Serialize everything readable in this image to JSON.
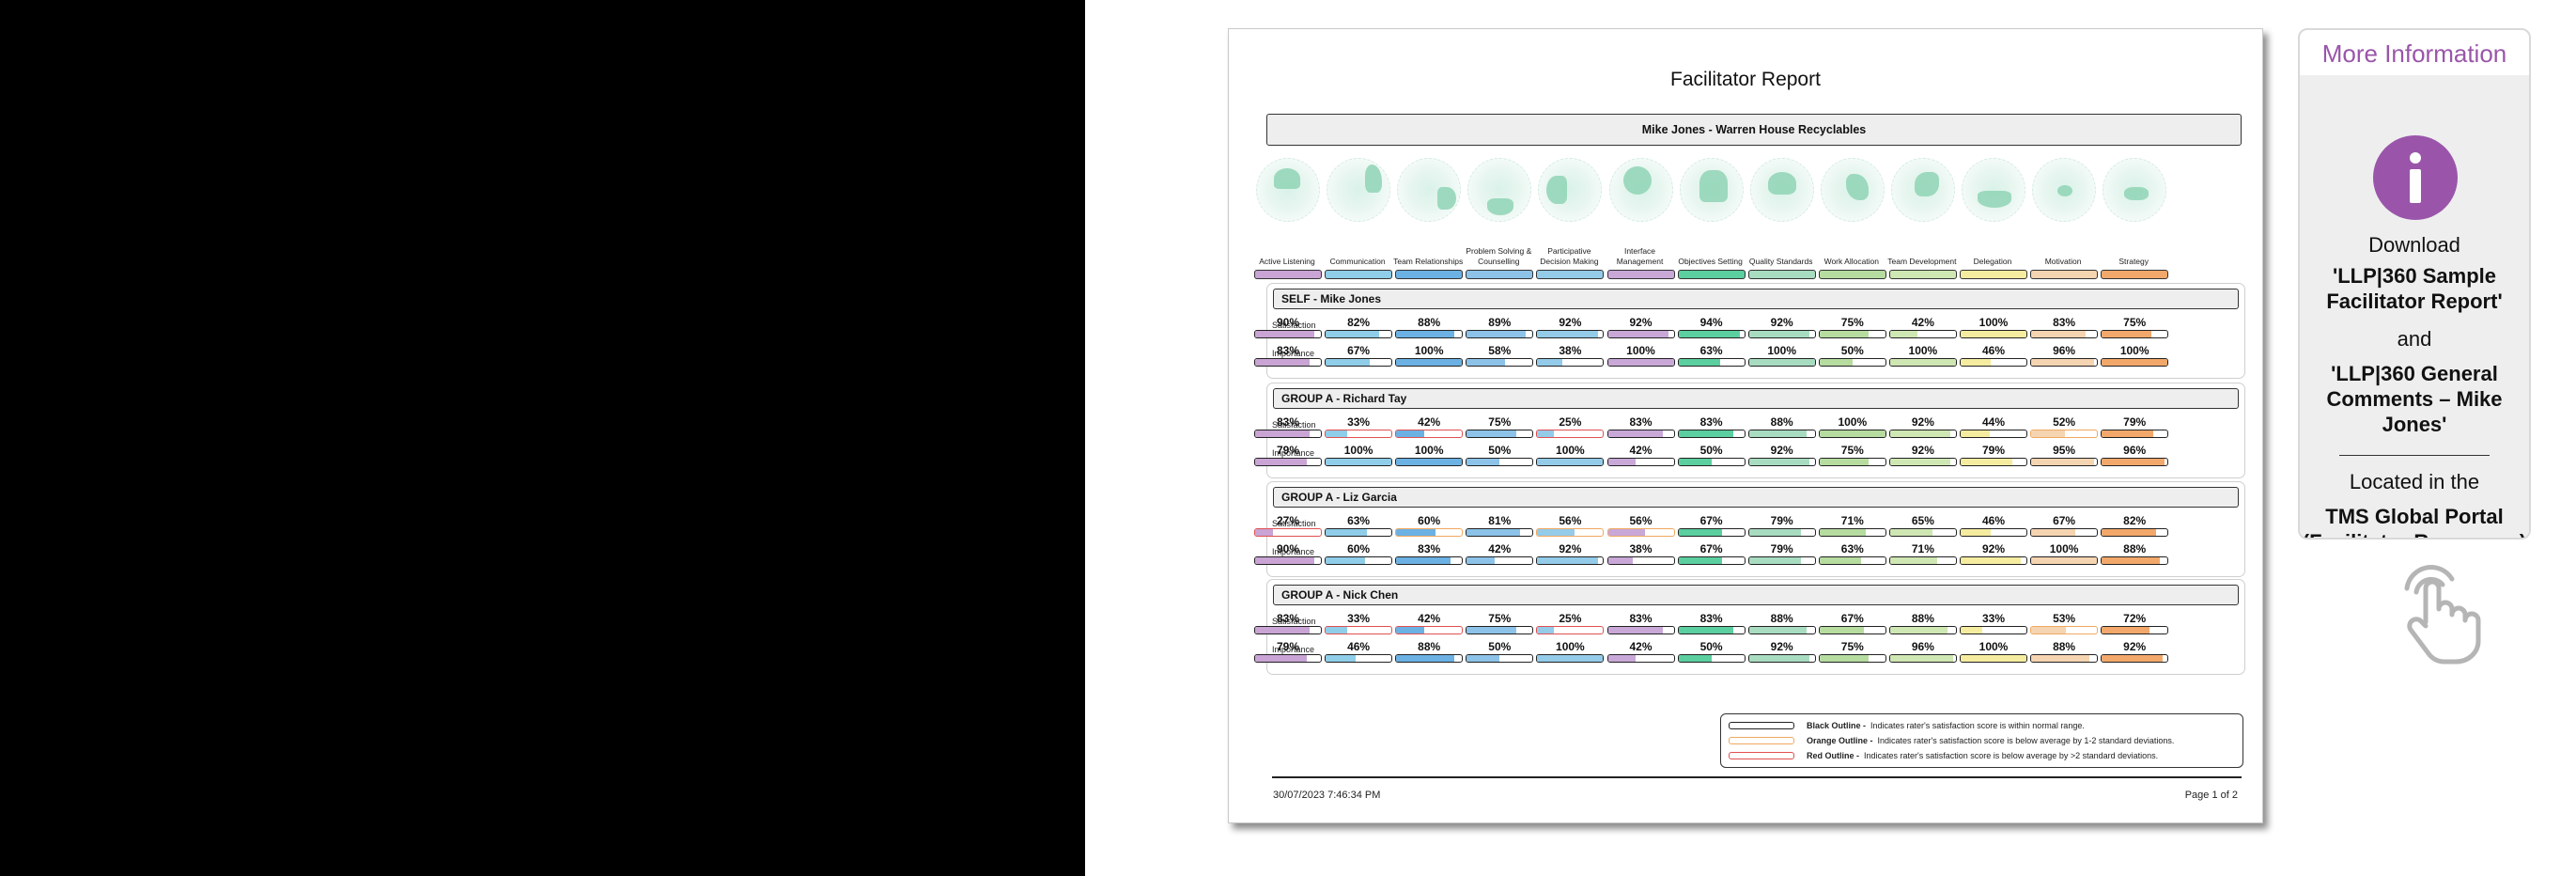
{
  "report": {
    "title": "Facilitator Report",
    "subject": "Mike Jones - Warren House Recyclables",
    "footer_date": "30/07/2023 7:46:34 PM",
    "footer_page": "Page 1 of 2"
  },
  "categories": [
    {
      "name": "Active Listening",
      "color": "#c9a4d4"
    },
    {
      "name": "Communication",
      "color": "#8fcde8"
    },
    {
      "name": "Team Relationships",
      "color": "#6bb1e3"
    },
    {
      "name": "Problem Solving & Counselling",
      "color": "#8dc3e8"
    },
    {
      "name": "Participative Decision Making",
      "color": "#94cbe9"
    },
    {
      "name": "Interface Management",
      "color": "#c9a8d8"
    },
    {
      "name": "Objectives Setting",
      "color": "#5bcf9f"
    },
    {
      "name": "Quality Standards",
      "color": "#a8dcc1"
    },
    {
      "name": "Work Allocation",
      "color": "#b6dca0"
    },
    {
      "name": "Team Development",
      "color": "#cfe7b3"
    },
    {
      "name": "Delegation",
      "color": "#f5eca0"
    },
    {
      "name": "Motivation",
      "color": "#f5d4b1"
    },
    {
      "name": "Strategy",
      "color": "#f2a86a"
    }
  ],
  "sections": [
    {
      "title": "SELF - Mike Jones",
      "satisfaction_label": "Satisfaction",
      "importance_label": "Importance",
      "satisfaction": [
        "90%",
        "82%",
        "88%",
        "89%",
        "92%",
        "92%",
        "94%",
        "92%",
        "75%",
        "42%",
        "100%",
        "83%",
        "75%"
      ],
      "satisfaction_outline": [
        "black",
        "black",
        "black",
        "black",
        "black",
        "black",
        "black",
        "black",
        "black",
        "black",
        "black",
        "black",
        "black"
      ],
      "importance": [
        "83%",
        "67%",
        "100%",
        "58%",
        "38%",
        "100%",
        "63%",
        "100%",
        "50%",
        "100%",
        "46%",
        "96%",
        "100%"
      ]
    },
    {
      "title": "GROUP A - Richard Tay",
      "satisfaction_label": "Satisfaction",
      "importance_label": "Importance",
      "satisfaction": [
        "83%",
        "33%",
        "42%",
        "75%",
        "25%",
        "83%",
        "83%",
        "88%",
        "100%",
        "92%",
        "44%",
        "52%",
        "79%"
      ],
      "satisfaction_outline": [
        "black",
        "red",
        "red",
        "black",
        "red",
        "black",
        "black",
        "black",
        "black",
        "black",
        "black",
        "orange",
        "black"
      ],
      "importance": [
        "79%",
        "100%",
        "100%",
        "50%",
        "100%",
        "42%",
        "50%",
        "92%",
        "75%",
        "92%",
        "79%",
        "95%",
        "96%"
      ]
    },
    {
      "title": "GROUP A - Liz Garcia",
      "satisfaction_label": "Satisfaction",
      "importance_label": "Importance",
      "satisfaction": [
        "27%",
        "63%",
        "60%",
        "81%",
        "56%",
        "56%",
        "67%",
        "79%",
        "71%",
        "65%",
        "46%",
        "67%",
        "82%"
      ],
      "satisfaction_outline": [
        "red",
        "black",
        "orange",
        "black",
        "orange",
        "orange",
        "black",
        "black",
        "black",
        "black",
        "black",
        "black",
        "black"
      ],
      "importance": [
        "90%",
        "60%",
        "83%",
        "42%",
        "92%",
        "38%",
        "67%",
        "79%",
        "63%",
        "71%",
        "92%",
        "100%",
        "88%"
      ]
    },
    {
      "title": "GROUP A - Nick Chen",
      "satisfaction_label": "Satisfaction",
      "importance_label": "Importance",
      "satisfaction": [
        "83%",
        "33%",
        "42%",
        "75%",
        "25%",
        "83%",
        "83%",
        "88%",
        "67%",
        "88%",
        "33%",
        "53%",
        "72%"
      ],
      "satisfaction_outline": [
        "black",
        "red",
        "red",
        "black",
        "red",
        "black",
        "black",
        "black",
        "black",
        "black",
        "black",
        "orange",
        "black"
      ],
      "importance": [
        "79%",
        "46%",
        "88%",
        "50%",
        "100%",
        "42%",
        "50%",
        "92%",
        "75%",
        "96%",
        "100%",
        "88%",
        "92%"
      ]
    }
  ],
  "legend": [
    {
      "label": "Black Outline -",
      "text": "Indicates rater's satisfaction score is within normal range.",
      "color": "#222222"
    },
    {
      "label": "Orange Outline -",
      "text": "Indicates rater's satisfaction score is below average by 1-2 standard deviations.",
      "color": "#f0a860"
    },
    {
      "label": "Red Outline -",
      "text": "Indicates rater's satisfaction score is below average by >2 standard deviations.",
      "color": "#e05050"
    }
  ],
  "side_panel": {
    "title": "More Information",
    "icon": "info-icon",
    "download": "Download",
    "doc1": "'LLP|360 Sample Facilitator Report'",
    "and": "and",
    "doc2": "'LLP|360 General Comments – Mike Jones'",
    "located": "Located in the",
    "portal": "TMS Global Portal (Facilitator Resources)",
    "hand_icon": "pointing-hand-icon",
    "accent": "#9a55aa"
  }
}
